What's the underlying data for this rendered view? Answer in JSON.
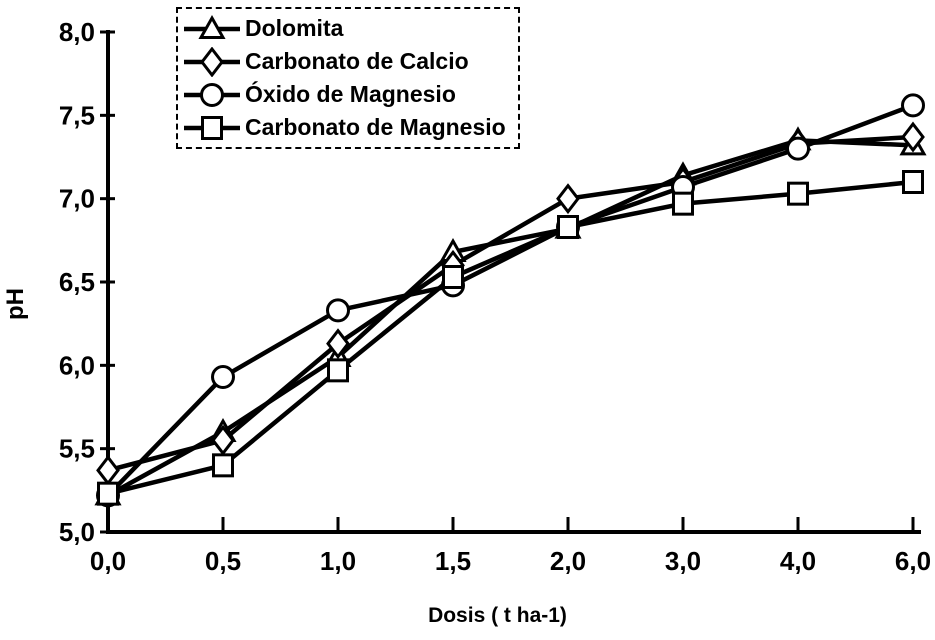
{
  "figure": {
    "background": "#ffffff",
    "ink_color": "#000000"
  },
  "chart_data": {
    "type": "line",
    "title": "",
    "xlabel": "Dosis ( t ha-1)",
    "ylabel": "pH",
    "x_axis_type": "categorical-evenly-spaced",
    "x_tick_labels": [
      "0,0",
      "0,5",
      "1,0",
      "1,5",
      "2,0",
      "3,0",
      "4,0",
      "6,0"
    ],
    "x_values": [
      0,
      0.5,
      1,
      1.5,
      2,
      3,
      4,
      6
    ],
    "ylim": [
      5.0,
      8.0
    ],
    "y_tick_values": [
      8.0,
      7.5,
      7.0,
      6.5,
      6.0,
      5.5,
      5.0
    ],
    "y_tick_labels": [
      "8,0",
      "7,5",
      "7,0",
      "6,5",
      "6,0",
      "5,5",
      "5,0"
    ],
    "grid": "off",
    "legend_position": "inside-top-left",
    "legend_border": "dashed",
    "line_color": "#000000",
    "marker_fill": "#ffffff",
    "series": [
      {
        "name": "Dolomita",
        "marker": "triangle",
        "values": [
          5.22,
          5.6,
          6.05,
          6.68,
          6.82,
          7.14,
          7.35,
          7.32
        ]
      },
      {
        "name": "Carbonato de Calcio",
        "marker": "diamond",
        "values": [
          5.37,
          5.55,
          6.13,
          6.6,
          7.0,
          7.1,
          7.33,
          7.37
        ]
      },
      {
        "name": "Óxido de Magnesio",
        "marker": "circle",
        "values": [
          5.22,
          5.93,
          6.33,
          6.48,
          6.83,
          7.07,
          7.3,
          7.56
        ]
      },
      {
        "name": "Carbonato de Magnesio",
        "marker": "square",
        "values": [
          5.23,
          5.4,
          5.97,
          6.53,
          6.83,
          6.97,
          7.03,
          7.1
        ]
      }
    ]
  }
}
